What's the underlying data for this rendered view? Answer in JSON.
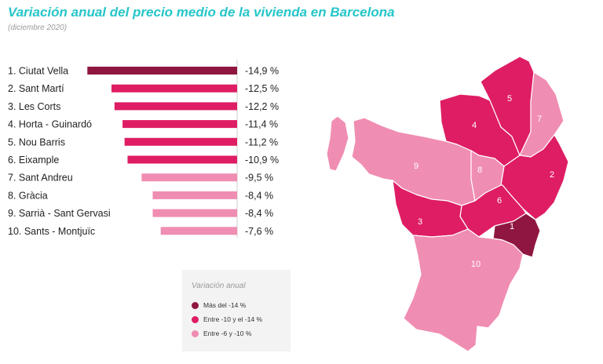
{
  "header": {
    "title": "Variación anual del precio medio de la vivienda en Barcelona",
    "subtitle": "(diciembre 2020)"
  },
  "colors": {
    "dark": "#8f1640",
    "mid": "#de1d64",
    "light": "#f08db2",
    "title": "#25c6c9"
  },
  "chart_data": {
    "type": "bar",
    "orientation": "horizontal",
    "categories": [
      "1. Ciutat Vella",
      "2. Sant Martí",
      "3. Les Corts",
      "4. Horta - Guinardó",
      "5. Nou Barris",
      "6. Eixample",
      "7. Sant Andreu",
      "8. Gràcia",
      "9. Sarrià - Sant Gervasi",
      "10. Sants - Montjuïc"
    ],
    "values": [
      -14.9,
      -12.5,
      -12.2,
      -11.4,
      -11.2,
      -10.9,
      -9.5,
      -8.4,
      -8.4,
      -7.6
    ],
    "value_labels": [
      "-14,9 %",
      "-12,5 %",
      "-12,2 %",
      "-11,4 %",
      "-11,2 %",
      "-10,9 %",
      "-9,5 %",
      "-8,4 %",
      "-8,4 %",
      "-7,6 %"
    ],
    "color_class": [
      "dark",
      "mid",
      "mid",
      "mid",
      "mid",
      "mid",
      "light",
      "light",
      "light",
      "light"
    ],
    "xlim": [
      -15,
      0
    ]
  },
  "legend": {
    "title": "Variación anual",
    "items": [
      {
        "label": "Más del -14 %",
        "color": "#8f1640"
      },
      {
        "label": "Entre -10 y el -14 %",
        "color": "#de1d64"
      },
      {
        "label": "Entre -6 y -10 %",
        "color": "#f08db2"
      }
    ]
  },
  "map": {
    "districts": [
      {
        "label": "1",
        "color": "#8f1640"
      },
      {
        "label": "2",
        "color": "#de1d64"
      },
      {
        "label": "3",
        "color": "#de1d64"
      },
      {
        "label": "4",
        "color": "#de1d64"
      },
      {
        "label": "5",
        "color": "#de1d64"
      },
      {
        "label": "6",
        "color": "#de1d64"
      },
      {
        "label": "7",
        "color": "#f08db2"
      },
      {
        "label": "8",
        "color": "#f08db2"
      },
      {
        "label": "9",
        "color": "#f08db2"
      },
      {
        "label": "10",
        "color": "#f08db2"
      }
    ]
  }
}
